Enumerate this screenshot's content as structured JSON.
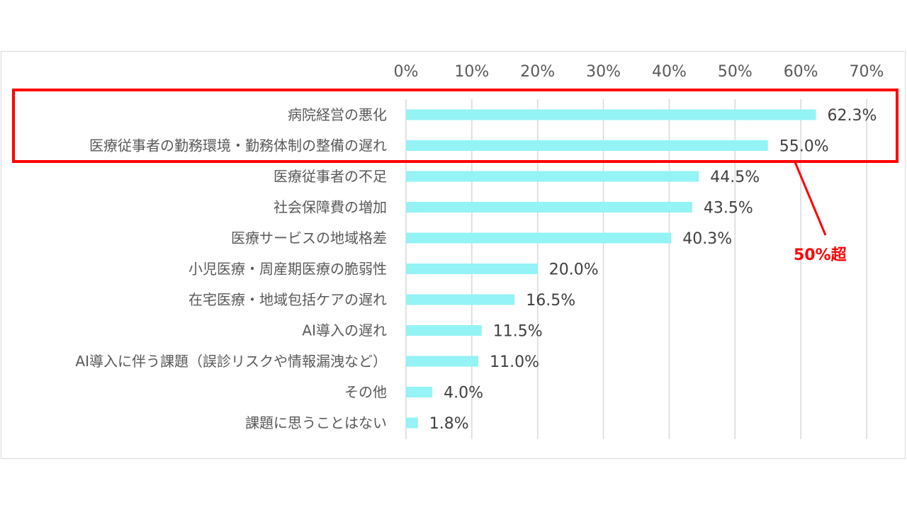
{
  "chart_data": {
    "type": "bar",
    "orientation": "horizontal",
    "categories": [
      "病院経営の悪化",
      "医療従事者の勤務環境・勤務体制の整備の遅れ",
      "医療従事者の不足",
      "社会保障費の増加",
      "医療サービスの地域格差",
      "小児医療・周産期医療の脆弱性",
      "在宅医療・地域包括ケアの遅れ",
      "AI導入の遅れ",
      "AI導入に伴う課題（誤診リスクや情報漏洩など）",
      "その他",
      "課題に思うことはない"
    ],
    "values": [
      62.3,
      55.0,
      44.5,
      43.5,
      40.3,
      20.0,
      16.5,
      11.5,
      11.0,
      4.0,
      1.8
    ],
    "data_labels": [
      "62.3%",
      "55.0%",
      "44.5%",
      "43.5%",
      "40.3%",
      "20.0%",
      "16.5%",
      "11.5%",
      "11.0%",
      "4.0%",
      "1.8%"
    ],
    "xlim": [
      0,
      70
    ],
    "xticks": [
      "0%",
      "10%",
      "20%",
      "30%",
      "40%",
      "50%",
      "60%",
      "70%"
    ],
    "xaxis_position": "top",
    "grid": true,
    "bar_color": "#93f3f5",
    "highlight": {
      "categories": [
        "病院経営の悪化",
        "医療従事者の勤務環境・勤務体制の整備の遅れ"
      ],
      "color": "#ff0000",
      "annotation": "50%超"
    }
  }
}
